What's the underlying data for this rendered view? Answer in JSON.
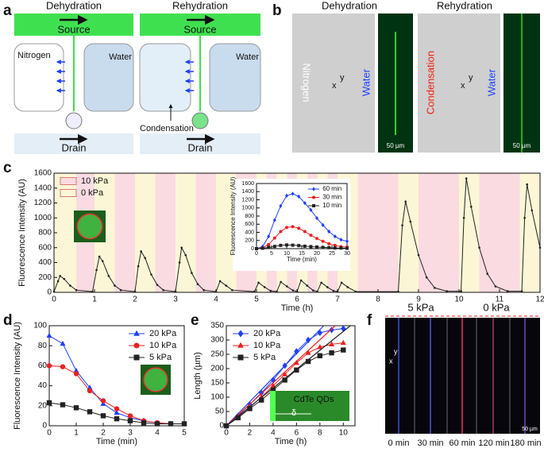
{
  "panel_labels": [
    "a",
    "b",
    "c",
    "d",
    "e",
    "f"
  ],
  "panel_a": {
    "left_title": "Dehydration",
    "right_title": "Rehydration",
    "left_source": "Source",
    "right_source": "Source",
    "nitrogen": "Nitrogen",
    "left_water": "Water",
    "right_water": "Water",
    "left_drain": "Drain",
    "right_drain": "Drain",
    "condensation": "Condensation"
  },
  "panel_b": {
    "left_title": "Dehydration",
    "right_title": "Rehydration",
    "nitrogen": "Nitrogen",
    "left_water": "Water",
    "condensation": "Condensation",
    "right_water": "Water",
    "left_scale": "50 µm",
    "right_scale": "50 µm",
    "left_y": "y",
    "left_x": "x",
    "right_y": "y",
    "right_x": "x"
  },
  "panel_f": {
    "left_pressure": "5 kPa",
    "right_pressure": "0 kPa",
    "times": [
      "0 min",
      "30 min",
      "60 min",
      "120 min",
      "180 min"
    ],
    "scale": "50 µm",
    "y": "y",
    "x": "x"
  },
  "chart_data": [
    {
      "type": "line",
      "xlabel": "Time (h)",
      "ylabel": "Fluorescence Intensity (AU)",
      "xlim": [
        0,
        12
      ],
      "xticks": [
        0,
        1,
        2,
        3,
        4,
        5,
        6,
        7,
        8,
        9,
        10,
        11,
        12
      ],
      "ylim": [
        0,
        1600
      ],
      "yticks": [
        0,
        200,
        400,
        600,
        800,
        1000,
        1200,
        1400,
        1600
      ],
      "legend_loc": "upper left",
      "regions": [
        {
          "name": "10 kPa",
          "color": "#fadbe1",
          "spans": [
            [
              0.55,
              1
            ],
            [
              1.5,
              2
            ],
            [
              2.5,
              3
            ],
            [
              3.5,
              4
            ],
            [
              4.5,
              5
            ],
            [
              5.25,
              5.5
            ],
            [
              5.75,
              6
            ],
            [
              6.25,
              6.5
            ],
            [
              6.75,
              7
            ],
            [
              7.5,
              8.5
            ],
            [
              9,
              10
            ],
            [
              10.5,
              11.5
            ]
          ]
        },
        {
          "name": "0 kPa",
          "color": "#fbf7d6",
          "spans": [
            [
              0,
              0.55
            ],
            [
              1,
              1.5
            ],
            [
              2,
              2.5
            ],
            [
              3,
              3.5
            ],
            [
              4,
              4.5
            ],
            [
              5,
              5.25
            ],
            [
              5.5,
              5.75
            ],
            [
              6,
              6.25
            ],
            [
              6.5,
              6.75
            ],
            [
              7,
              7.5
            ],
            [
              8.5,
              9
            ],
            [
              10,
              10.5
            ],
            [
              11.5,
              12
            ]
          ]
        }
      ],
      "x": [
        0,
        0.1,
        0.15,
        0.25,
        0.4,
        0.55,
        0.95,
        1.05,
        1.12,
        1.2,
        1.35,
        1.5,
        1.65,
        2.0,
        2.08,
        2.15,
        2.25,
        2.4,
        2.55,
        2.7,
        3.0,
        3.1,
        3.15,
        3.25,
        3.4,
        3.55,
        3.7,
        4.0,
        4.1,
        4.25,
        4.4,
        4.95,
        5.05,
        5.2,
        5.35,
        5.5,
        5.6,
        5.75,
        5.9,
        6.0,
        6.1,
        6.25,
        6.4,
        6.5,
        6.6,
        6.75,
        6.9,
        7.0,
        7.1,
        7.25,
        7.45,
        8.5,
        8.6,
        8.68,
        8.8,
        9.0,
        9.2,
        9.4,
        9.7,
        10.05,
        10.12,
        10.18,
        10.3,
        10.5,
        10.7,
        10.9,
        11.2,
        11.55,
        11.62,
        11.68,
        11.8,
        12.0
      ],
      "series": [
        {
          "color": "#222222",
          "marker": "dot",
          "values": [
            10,
            150,
            220,
            180,
            90,
            30,
            10,
            300,
            480,
            420,
            220,
            90,
            30,
            10,
            350,
            550,
            460,
            240,
            100,
            30,
            10,
            400,
            600,
            500,
            260,
            110,
            30,
            10,
            150,
            90,
            30,
            10,
            130,
            70,
            20,
            10,
            140,
            80,
            25,
            10,
            160,
            90,
            25,
            10,
            130,
            70,
            20,
            10,
            130,
            70,
            10,
            10,
            900,
            1220,
            950,
            500,
            200,
            60,
            15,
            15,
            1000,
            1530,
            1150,
            600,
            250,
            80,
            15,
            15,
            1000,
            1450,
            1100,
            600
          ]
        }
      ]
    },
    {
      "type": "line",
      "xlabel": "Time (min)",
      "ylabel": "Fluorescence Intensity (AU)",
      "xlim": [
        0,
        30
      ],
      "xticks": [
        0,
        5,
        10,
        15,
        20,
        25,
        30
      ],
      "ylim": [
        0,
        1600
      ],
      "yticks": [
        0,
        200,
        400,
        600,
        800,
        1000,
        1200,
        1400,
        1600
      ],
      "legend_loc": "upper right",
      "x": [
        0,
        2,
        4,
        6,
        8,
        10,
        12,
        14,
        16,
        18,
        20,
        22,
        24,
        26,
        28,
        30
      ],
      "series": [
        {
          "name": "60 min",
          "color": "#1f3fff",
          "marker": "diamond",
          "values": [
            0,
            50,
            300,
            700,
            1050,
            1300,
            1350,
            1280,
            1120,
            950,
            750,
            580,
            420,
            300,
            220,
            180
          ]
        },
        {
          "name": "30 min",
          "color": "#ee2020",
          "marker": "circle",
          "values": [
            0,
            20,
            100,
            260,
            420,
            520,
            540,
            500,
            420,
            330,
            250,
            180,
            120,
            80,
            50,
            40
          ]
        },
        {
          "name": "10 min",
          "color": "#222222",
          "marker": "square",
          "values": [
            0,
            10,
            30,
            55,
            80,
            90,
            85,
            75,
            60,
            50,
            40,
            32,
            25,
            18,
            15,
            10
          ]
        }
      ]
    },
    {
      "type": "line",
      "xlabel": "Time (min)",
      "ylabel": "Fluorescence Intensity (AU)",
      "xlim": [
        0,
        5
      ],
      "xticks": [
        0,
        1,
        2,
        3,
        4,
        5
      ],
      "ylim": [
        0,
        100
      ],
      "yticks": [
        0,
        20,
        40,
        60,
        80,
        100
      ],
      "legend_loc": "upper right",
      "x": [
        0,
        0.5,
        1,
        1.5,
        2,
        2.5,
        3,
        3.5,
        4,
        4.5,
        5
      ],
      "series": [
        {
          "name": "20 kPa",
          "color": "#1f3fff",
          "marker": "triangle",
          "values": [
            90,
            82,
            55,
            38,
            22,
            13,
            8,
            5,
            3,
            2,
            2
          ]
        },
        {
          "name": "10 kPa",
          "color": "#ee2020",
          "marker": "circle",
          "values": [
            60,
            59,
            52,
            35,
            25,
            17,
            10,
            5,
            3,
            2,
            2
          ]
        },
        {
          "name": "5 kPa",
          "color": "#222222",
          "marker": "square",
          "values": [
            23,
            21,
            18,
            14,
            10,
            7,
            5,
            3,
            2,
            2,
            2
          ]
        }
      ]
    },
    {
      "type": "line",
      "xlabel": "Time (h)",
      "ylabel": "Length (µm)",
      "xlim": [
        0,
        11
      ],
      "xticks": [
        0,
        2,
        4,
        6,
        8,
        10
      ],
      "ylim": [
        0,
        350
      ],
      "yticks": [
        0,
        50,
        100,
        150,
        200,
        250,
        300,
        350
      ],
      "legend_loc": "upper left",
      "annotations": [
        "CdTe QDs",
        "δ"
      ],
      "x": [
        0,
        1,
        2,
        3,
        4,
        5,
        6,
        7,
        8,
        9,
        10
      ],
      "series": [
        {
          "name": "20 kPa",
          "color": "#1f3fff",
          "marker": "diamond",
          "fit_slope": 42,
          "values": [
            0,
            35,
            75,
            115,
            160,
            210,
            260,
            300,
            325,
            335,
            340
          ]
        },
        {
          "name": "10 kPa",
          "color": "#ee2020",
          "marker": "triangle",
          "fit_slope": 37.6,
          "values": [
            0,
            30,
            65,
            100,
            140,
            180,
            220,
            255,
            275,
            285,
            290
          ]
        },
        {
          "name": "5 kPa",
          "color": "#222222",
          "marker": "square",
          "fit_slope": 33,
          "values": [
            0,
            28,
            60,
            90,
            125,
            160,
            195,
            225,
            245,
            255,
            265
          ]
        }
      ]
    }
  ]
}
